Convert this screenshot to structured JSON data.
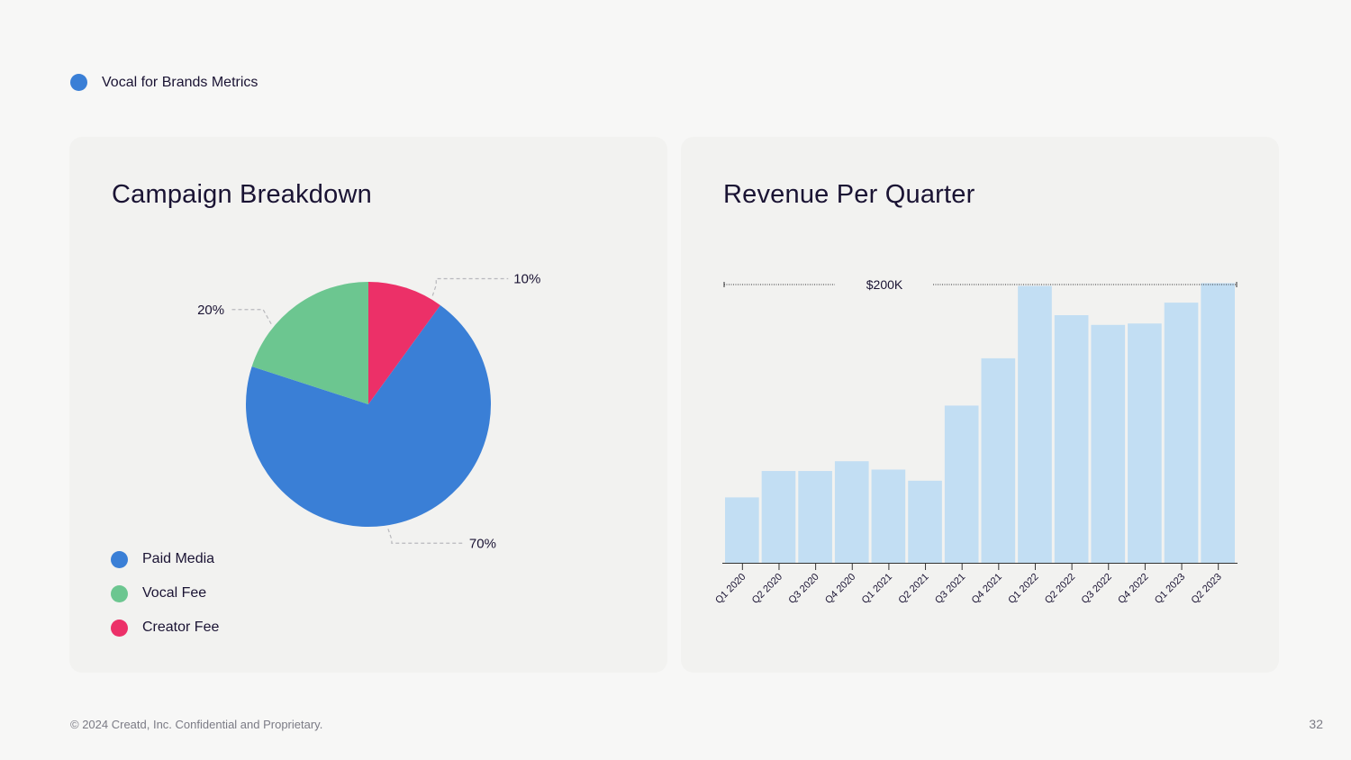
{
  "header": {
    "title": "Vocal for Brands Metrics",
    "dot_color": "#3a7fd6"
  },
  "pie_card": {
    "title": "Campaign Breakdown",
    "legend": [
      {
        "label": "Paid Media",
        "color": "#3a7fd6"
      },
      {
        "label": "Vocal Fee",
        "color": "#6cc690"
      },
      {
        "label": "Creator Fee",
        "color": "#ec3068"
      }
    ]
  },
  "bar_card": {
    "title": "Revenue Per Quarter"
  },
  "chart_data": [
    {
      "type": "pie",
      "title": "Campaign Breakdown",
      "slices": [
        {
          "label": "Creator Fee",
          "value": 10,
          "display": "10%",
          "color": "#ec3068"
        },
        {
          "label": "Paid Media",
          "value": 70,
          "display": "70%",
          "color": "#3a7fd6"
        },
        {
          "label": "Vocal Fee",
          "value": 20,
          "display": "20%",
          "color": "#6cc690"
        }
      ]
    },
    {
      "type": "bar",
      "title": "Revenue Per Quarter",
      "categories": [
        "Q1 2020",
        "Q2 2020",
        "Q3 2020",
        "Q4 2020",
        "Q1 2021",
        "Q2 2021",
        "Q3 2021",
        "Q4 2021",
        "Q1 2022",
        "Q2 2022",
        "Q3 2022",
        "Q4 2022",
        "Q1 2023",
        "Q2 2023"
      ],
      "values": [
        47,
        66,
        66,
        73,
        67,
        59,
        113,
        147,
        199,
        178,
        171,
        172,
        187,
        201
      ],
      "reference_line": {
        "value": 200,
        "label": "$200K"
      },
      "ylim": [
        0,
        220
      ],
      "bar_color": "#c2def3",
      "xlabel": "",
      "ylabel": ""
    }
  ],
  "footer": {
    "copyright": "© 2024 Creatd, Inc. Confidential and Proprietary.",
    "page_number": "32"
  }
}
